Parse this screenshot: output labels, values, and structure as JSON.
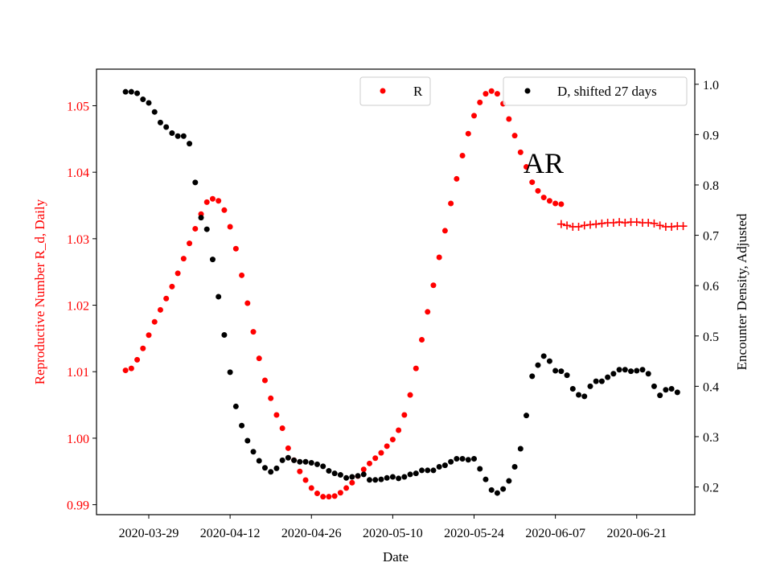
{
  "chart_data": {
    "type": "scatter",
    "xlabel": "Date",
    "ylabel_left": "Reproductive Number R_d, Daily",
    "ylabel_right": "Encounter Density, Adjusted",
    "xlim": [
      "2020-03-20",
      "2020-07-01"
    ],
    "ylim_left": [
      0.9885,
      1.0555
    ],
    "ylim_right": [
      0.145,
      1.03
    ],
    "x_ticks": [
      "2020-03-29",
      "2020-04-12",
      "2020-04-26",
      "2020-05-10",
      "2020-05-24",
      "2020-06-07",
      "2020-06-21"
    ],
    "y_ticks_left": [
      "0.99",
      "1.00",
      "1.01",
      "1.02",
      "1.03",
      "1.04",
      "1.05"
    ],
    "y_ticks_right": [
      "0.2",
      "0.3",
      "0.4",
      "0.5",
      "0.6",
      "0.7",
      "0.8",
      "0.9",
      "1.0"
    ],
    "annotation": "AR",
    "legend": [
      {
        "label": "R",
        "color": "#ff0000",
        "marker": "dot",
        "placement": "top-center"
      },
      {
        "label": "D, shifted 27 days",
        "color": "#000000",
        "marker": "dot",
        "placement": "top-right"
      }
    ],
    "colors": {
      "r_series": "#ff0000",
      "d_series": "#000000",
      "left_axis": "#ff0000",
      "right_axis": "#000000"
    },
    "series": [
      {
        "name": "R",
        "axis": "left",
        "marker": "dot",
        "start": "2020-03-25",
        "values": [
          1.0102,
          1.0105,
          1.0118,
          1.0135,
          1.0155,
          1.0175,
          1.0193,
          1.021,
          1.0228,
          1.0248,
          1.027,
          1.0293,
          1.0315,
          1.0337,
          1.0355,
          1.036,
          1.0357,
          1.0343,
          1.0318,
          1.0285,
          1.0245,
          1.0203,
          1.016,
          1.012,
          1.0087,
          1.006,
          1.0035,
          1.0015,
          0.9985,
          0.9967,
          0.995,
          0.9937,
          0.9925,
          0.9917,
          0.9912,
          0.9912,
          0.9913,
          0.9918,
          0.9925,
          0.9933,
          0.9943,
          0.9953,
          0.9962,
          0.997,
          0.9978,
          0.9988,
          0.9998,
          1.0012,
          1.0035,
          1.0065,
          1.0105,
          1.0148,
          1.019,
          1.023,
          1.0272,
          1.0312,
          1.0353,
          1.039,
          1.0425,
          1.0458,
          1.0485,
          1.0505,
          1.0518,
          1.0522,
          1.0518,
          1.0503,
          1.048,
          1.0455,
          1.043,
          1.0408,
          1.0385,
          1.0372,
          1.0362,
          1.0357,
          1.0353,
          1.0352
        ]
      },
      {
        "name": "R",
        "axis": "left",
        "marker": "plus",
        "start": "2020-06-08",
        "values": [
          1.0322,
          1.032,
          1.0318,
          1.0318,
          1.032,
          1.0321,
          1.0322,
          1.0323,
          1.0324,
          1.0324,
          1.0325,
          1.0324,
          1.0325,
          1.0325,
          1.0324,
          1.0324,
          1.0323,
          1.032,
          1.0318,
          1.0318,
          1.0319,
          1.0319
        ]
      },
      {
        "name": "D, shifted 27 days",
        "axis": "right",
        "marker": "dot",
        "start": "2020-03-25",
        "values": [
          0.985,
          0.985,
          0.982,
          0.97,
          0.963,
          0.945,
          0.924,
          0.915,
          0.903,
          0.897,
          0.897,
          0.882,
          0.805,
          0.735,
          0.712,
          0.652,
          0.578,
          0.502,
          0.428,
          0.36,
          0.322,
          0.292,
          0.27,
          0.252,
          0.238,
          0.23,
          0.237,
          0.253,
          0.258,
          0.253,
          0.25,
          0.25,
          0.248,
          0.245,
          0.241,
          0.232,
          0.227,
          0.224,
          0.218,
          0.22,
          0.222,
          0.225,
          0.214,
          0.214,
          0.215,
          0.218,
          0.22,
          0.217,
          0.22,
          0.225,
          0.227,
          0.233,
          0.233,
          0.233,
          0.24,
          0.243,
          0.25,
          0.256,
          0.256,
          0.254,
          0.256,
          0.236,
          0.215,
          0.194,
          0.188,
          0.196,
          0.212,
          0.24,
          0.276,
          0.342,
          0.42,
          0.442,
          0.46,
          0.45,
          0.431,
          0.43,
          0.422,
          0.395,
          0.383,
          0.38,
          0.4,
          0.41,
          0.41,
          0.418,
          0.425,
          0.433,
          0.433,
          0.43,
          0.431,
          0.433,
          0.425,
          0.4,
          0.382,
          0.393,
          0.395,
          0.388
        ]
      }
    ]
  }
}
